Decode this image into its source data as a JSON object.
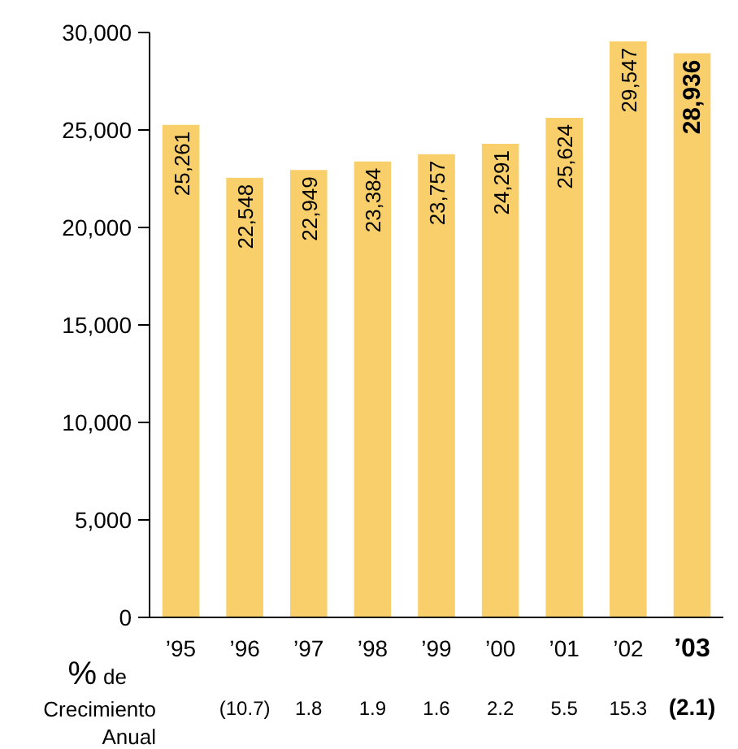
{
  "chart_data": {
    "type": "bar",
    "categories": [
      "’95",
      "’96",
      "’97",
      "’98",
      "’99",
      "’00",
      "’01",
      "’02",
      "’03"
    ],
    "values": [
      25261,
      22548,
      22949,
      23384,
      23757,
      24291,
      25624,
      29547,
      28936
    ],
    "value_labels": [
      "25,261",
      "22,548",
      "22,949",
      "23,384",
      "23,757",
      "24,291",
      "25,624",
      "29,547",
      "28,936"
    ],
    "color": "#f9cf6b",
    "ylim": [
      0,
      30000
    ],
    "yticks": [
      {
        "value": 0,
        "label": "0"
      },
      {
        "value": 5000,
        "label": "5,000"
      },
      {
        "value": 10000,
        "label": "10,000"
      },
      {
        "value": 15000,
        "label": "15,000"
      },
      {
        "value": 20000,
        "label": "20,000"
      },
      {
        "value": 25000,
        "label": "25,000"
      },
      {
        "value": 30000,
        "label": "30,000"
      }
    ],
    "annotations": [
      "% de Crecimiento Anual",
      "(10.7)",
      "1.8",
      "1.9",
      "1.6",
      "2.2",
      "5.5",
      "15.3",
      "(2.1)"
    ]
  }
}
